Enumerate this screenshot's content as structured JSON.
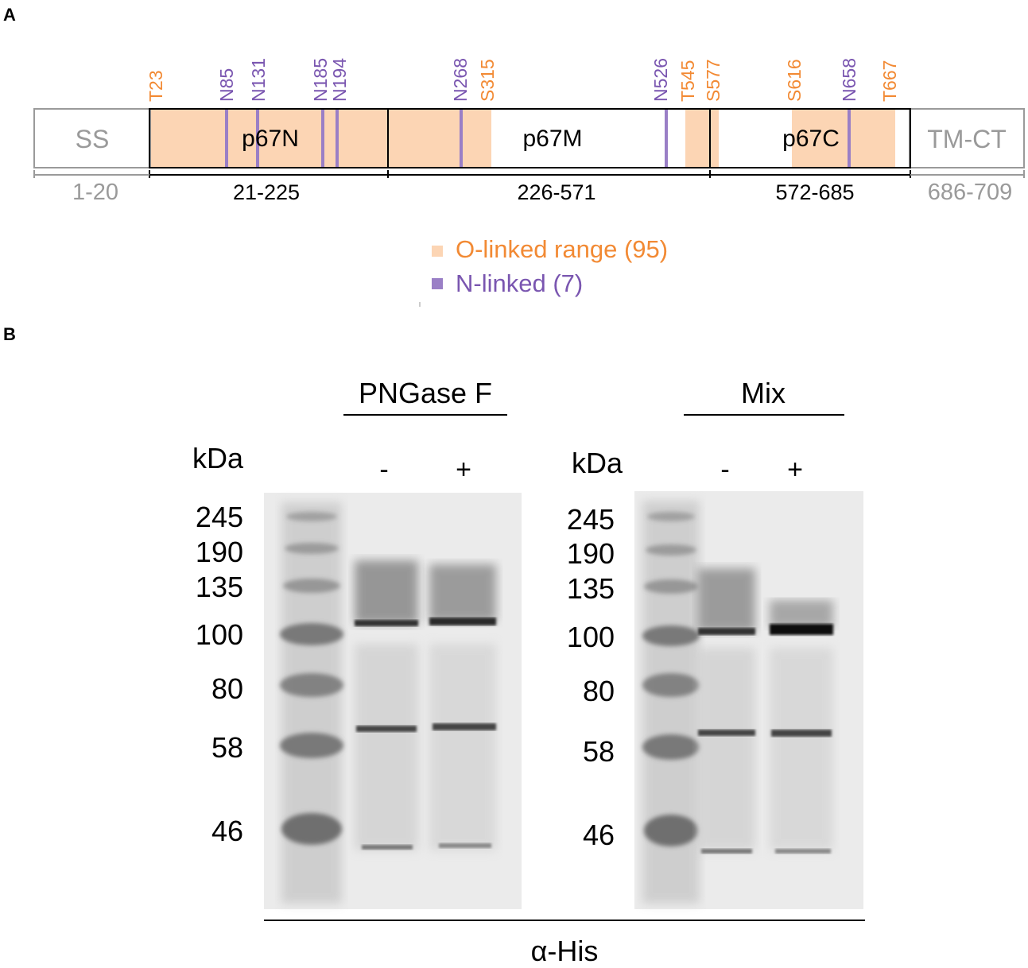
{
  "panels": {
    "a": "A",
    "b": "B"
  },
  "colors": {
    "o_linked": "#fcd5b4",
    "o_text": "#f28a34",
    "n_linked": "#9a7fc6",
    "n_text": "#7a56b0",
    "grey_text": "#9a9a9a"
  },
  "domain_map": {
    "segments": [
      {
        "label": "SS",
        "range": "1-20"
      },
      {
        "label": "p67N",
        "range": "21-225"
      },
      {
        "label": "p67M",
        "range": "226-571"
      },
      {
        "label": "p67C",
        "range": "572-685"
      },
      {
        "label": "TM-CT",
        "range": "686-709"
      }
    ],
    "o_sites": [
      "T23",
      "S315",
      "T545",
      "S577",
      "S616",
      "T667"
    ],
    "n_sites": [
      "N85",
      "N131",
      "N185",
      "N194",
      "N268",
      "N526",
      "N658"
    ]
  },
  "legend": {
    "o_linked": "O-linked range (95)",
    "n_linked": "N-linked (7)"
  },
  "blot": {
    "left_treatment": "PNGase F",
    "right_treatment": "Mix",
    "kda_label": "kDa",
    "markers": [
      "245",
      "190",
      "135",
      "100",
      "80",
      "58",
      "46"
    ],
    "lane_minus": "-",
    "lane_plus": "+",
    "antibody": "α-His"
  }
}
